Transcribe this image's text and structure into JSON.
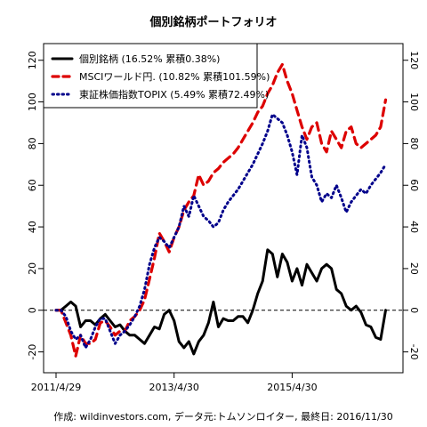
{
  "chart_data": {
    "type": "line",
    "title": "個別銘柄ポートフォリオ",
    "caption": "作成: wildinvestors.com, データ元:トムソンロイター, 最終日: 2016/11/30",
    "xlim": [
      0,
      68
    ],
    "ylim": [
      -30,
      128
    ],
    "x_ticks": [
      {
        "x": 0,
        "label": "2011/4/29"
      },
      {
        "x": 24,
        "label": "2013/4/30"
      },
      {
        "x": 48,
        "label": "2015/4/30"
      }
    ],
    "y_ticks": [
      -20,
      0,
      20,
      40,
      60,
      80,
      100,
      120
    ],
    "y_axis_both_sides": true,
    "reference_line": {
      "y": 0,
      "style": "dashed"
    },
    "legend": {
      "position": "top-left",
      "entries": [
        {
          "label": "個別銘柄 (16.52% 累積0.38%)",
          "color": "#000000",
          "style": "solid"
        },
        {
          "label": "MSCIワールド円. (10.82% 累積101.59%)",
          "color": "#dd0000",
          "style": "dashed"
        },
        {
          "label": "東証株価指数TOPIX (5.49% 累積72.49%)",
          "color": "#00008b",
          "style": "dotted"
        }
      ]
    },
    "series": [
      {
        "name": "個別銘柄 (16.52% 累積0.38%)",
        "color": "#000000",
        "style": "solid",
        "values": [
          [
            0,
            0
          ],
          [
            1,
            0
          ],
          [
            2,
            2
          ],
          [
            3,
            4
          ],
          [
            4,
            2
          ],
          [
            5,
            -8
          ],
          [
            6,
            -5
          ],
          [
            7,
            -5
          ],
          [
            8,
            -7
          ],
          [
            9,
            -4
          ],
          [
            10,
            -2
          ],
          [
            11,
            -5
          ],
          [
            12,
            -8
          ],
          [
            13,
            -7
          ],
          [
            14,
            -10
          ],
          [
            15,
            -12
          ],
          [
            16,
            -12
          ],
          [
            17,
            -14
          ],
          [
            18,
            -16
          ],
          [
            19,
            -12
          ],
          [
            20,
            -8
          ],
          [
            21,
            -9
          ],
          [
            22,
            -2
          ],
          [
            23,
            0
          ],
          [
            24,
            -5
          ],
          [
            25,
            -15
          ],
          [
            26,
            -18
          ],
          [
            27,
            -15
          ],
          [
            28,
            -21
          ],
          [
            29,
            -15
          ],
          [
            30,
            -12
          ],
          [
            31,
            -6
          ],
          [
            32,
            4
          ],
          [
            33,
            -8
          ],
          [
            34,
            -4
          ],
          [
            35,
            -5
          ],
          [
            36,
            -5
          ],
          [
            37,
            -3
          ],
          [
            38,
            -3
          ],
          [
            39,
            -6
          ],
          [
            40,
            0
          ],
          [
            41,
            8
          ],
          [
            42,
            14
          ],
          [
            43,
            29
          ],
          [
            44,
            27
          ],
          [
            45,
            16
          ],
          [
            46,
            27
          ],
          [
            47,
            23
          ],
          [
            48,
            14
          ],
          [
            49,
            20
          ],
          [
            50,
            12
          ],
          [
            51,
            22
          ],
          [
            52,
            18
          ],
          [
            53,
            14
          ],
          [
            54,
            20
          ],
          [
            55,
            22
          ],
          [
            56,
            20
          ],
          [
            57,
            10
          ],
          [
            58,
            8
          ],
          [
            59,
            2
          ],
          [
            60,
            0
          ],
          [
            61,
            2
          ],
          [
            62,
            -1
          ],
          [
            63,
            -7
          ],
          [
            64,
            -8
          ],
          [
            65,
            -13
          ],
          [
            66,
            -14
          ],
          [
            67,
            0
          ]
        ]
      },
      {
        "name": "MSCIワールド円. (10.82% 累積101.59%)",
        "color": "#dd0000",
        "style": "dashed",
        "values": [
          [
            0,
            0
          ],
          [
            1,
            0
          ],
          [
            2,
            -6
          ],
          [
            3,
            -12
          ],
          [
            4,
            -22
          ],
          [
            5,
            -12
          ],
          [
            6,
            -16
          ],
          [
            7,
            -16
          ],
          [
            8,
            -14
          ],
          [
            9,
            -6
          ],
          [
            10,
            -5
          ],
          [
            11,
            -8
          ],
          [
            12,
            -12
          ],
          [
            13,
            -10
          ],
          [
            14,
            -10
          ],
          [
            15,
            -5
          ],
          [
            16,
            -3
          ],
          [
            17,
            0
          ],
          [
            18,
            5
          ],
          [
            19,
            15
          ],
          [
            20,
            25
          ],
          [
            21,
            37
          ],
          [
            22,
            33
          ],
          [
            23,
            28
          ],
          [
            24,
            35
          ],
          [
            25,
            40
          ],
          [
            26,
            48
          ],
          [
            27,
            52
          ],
          [
            28,
            55
          ],
          [
            29,
            65
          ],
          [
            30,
            60
          ],
          [
            31,
            62
          ],
          [
            32,
            66
          ],
          [
            33,
            68
          ],
          [
            34,
            71
          ],
          [
            35,
            73
          ],
          [
            36,
            75
          ],
          [
            37,
            78
          ],
          [
            38,
            82
          ],
          [
            39,
            86
          ],
          [
            40,
            90
          ],
          [
            41,
            95
          ],
          [
            42,
            98
          ],
          [
            43,
            104
          ],
          [
            44,
            108
          ],
          [
            45,
            114
          ],
          [
            46,
            118
          ],
          [
            47,
            110
          ],
          [
            48,
            104
          ],
          [
            49,
            96
          ],
          [
            50,
            88
          ],
          [
            51,
            82
          ],
          [
            52,
            88
          ],
          [
            53,
            90
          ],
          [
            54,
            80
          ],
          [
            55,
            76
          ],
          [
            56,
            86
          ],
          [
            57,
            82
          ],
          [
            58,
            78
          ],
          [
            59,
            86
          ],
          [
            60,
            88
          ],
          [
            61,
            80
          ],
          [
            62,
            78
          ],
          [
            63,
            80
          ],
          [
            64,
            82
          ],
          [
            65,
            84
          ],
          [
            66,
            88
          ],
          [
            67,
            101
          ]
        ]
      },
      {
        "name": "東証株価指数TOPIX (5.49% 累積72.49%)",
        "color": "#00008b",
        "style": "dotted",
        "values": [
          [
            0,
            0
          ],
          [
            1,
            0
          ],
          [
            2,
            -3
          ],
          [
            3,
            -10
          ],
          [
            4,
            -14
          ],
          [
            5,
            -12
          ],
          [
            6,
            -18
          ],
          [
            7,
            -14
          ],
          [
            8,
            -8
          ],
          [
            9,
            -4
          ],
          [
            10,
            -4
          ],
          [
            11,
            -10
          ],
          [
            12,
            -16
          ],
          [
            13,
            -12
          ],
          [
            14,
            -10
          ],
          [
            15,
            -7
          ],
          [
            16,
            -3
          ],
          [
            17,
            2
          ],
          [
            18,
            10
          ],
          [
            19,
            22
          ],
          [
            20,
            30
          ],
          [
            21,
            35
          ],
          [
            22,
            33
          ],
          [
            23,
            30
          ],
          [
            24,
            35
          ],
          [
            25,
            40
          ],
          [
            26,
            50
          ],
          [
            27,
            45
          ],
          [
            28,
            55
          ],
          [
            29,
            50
          ],
          [
            30,
            45
          ],
          [
            31,
            43
          ],
          [
            32,
            40
          ],
          [
            33,
            42
          ],
          [
            34,
            48
          ],
          [
            35,
            52
          ],
          [
            36,
            55
          ],
          [
            37,
            58
          ],
          [
            38,
            62
          ],
          [
            39,
            66
          ],
          [
            40,
            70
          ],
          [
            41,
            75
          ],
          [
            42,
            80
          ],
          [
            43,
            86
          ],
          [
            44,
            94
          ],
          [
            45,
            92
          ],
          [
            46,
            90
          ],
          [
            47,
            84
          ],
          [
            48,
            76
          ],
          [
            49,
            65
          ],
          [
            50,
            84
          ],
          [
            51,
            78
          ],
          [
            52,
            64
          ],
          [
            53,
            60
          ],
          [
            54,
            52
          ],
          [
            55,
            56
          ],
          [
            56,
            54
          ],
          [
            57,
            60
          ],
          [
            58,
            54
          ],
          [
            59,
            47
          ],
          [
            60,
            52
          ],
          [
            61,
            55
          ],
          [
            62,
            58
          ],
          [
            63,
            56
          ],
          [
            64,
            60
          ],
          [
            65,
            63
          ],
          [
            66,
            66
          ],
          [
            67,
            70
          ]
        ]
      }
    ]
  }
}
